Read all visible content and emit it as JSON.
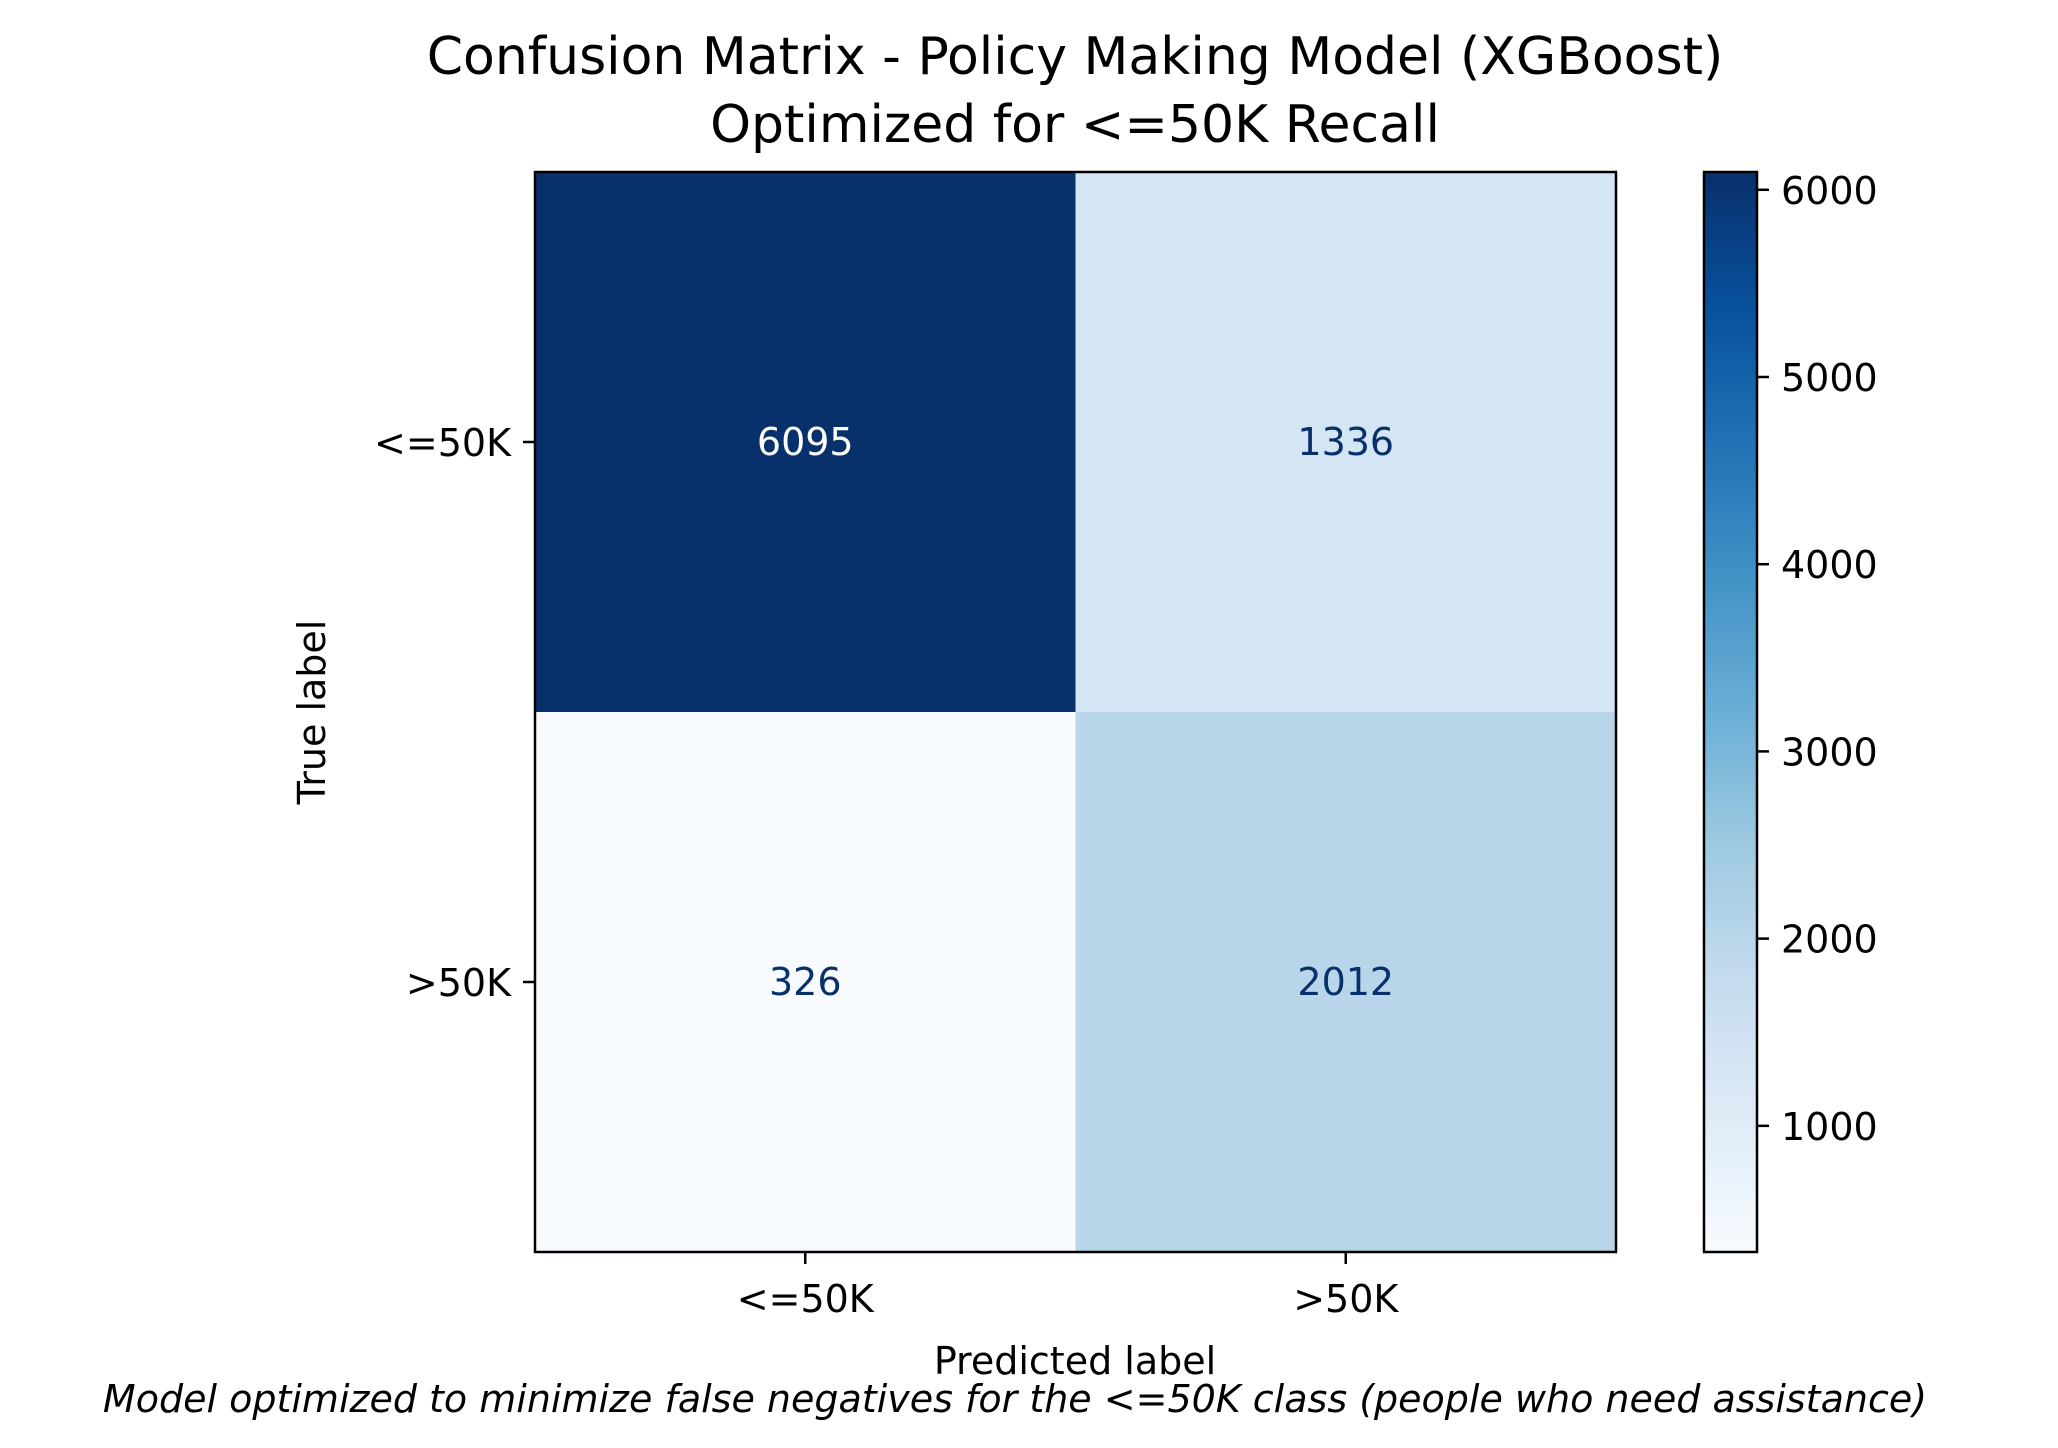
{
  "chart_data": {
    "type": "heatmap",
    "title": "Confusion Matrix - Policy Making Model (XGBoost)",
    "subtitle": "Optimized for <=50K Recall",
    "xlabel": "Predicted label",
    "ylabel": "True label",
    "x_categories": [
      "<=50K",
      ">50K"
    ],
    "y_categories": [
      "<=50K",
      ">50K"
    ],
    "values": [
      [
        6095,
        1336
      ],
      [
        326,
        2012
      ]
    ],
    "colormap": "Blues",
    "colorbar": {
      "min": 326,
      "max": 6095,
      "ticks": [
        1000,
        2000,
        3000,
        4000,
        5000,
        6000
      ],
      "tick_labels": [
        "1000",
        "2000",
        "3000",
        "4000",
        "5000",
        "6000"
      ]
    },
    "caption": "Model optimized to minimize false negatives for the <=50K class (people who need assistance)",
    "colors": {
      "text_light": "#ffffff",
      "text_dark": "#08306b"
    }
  }
}
